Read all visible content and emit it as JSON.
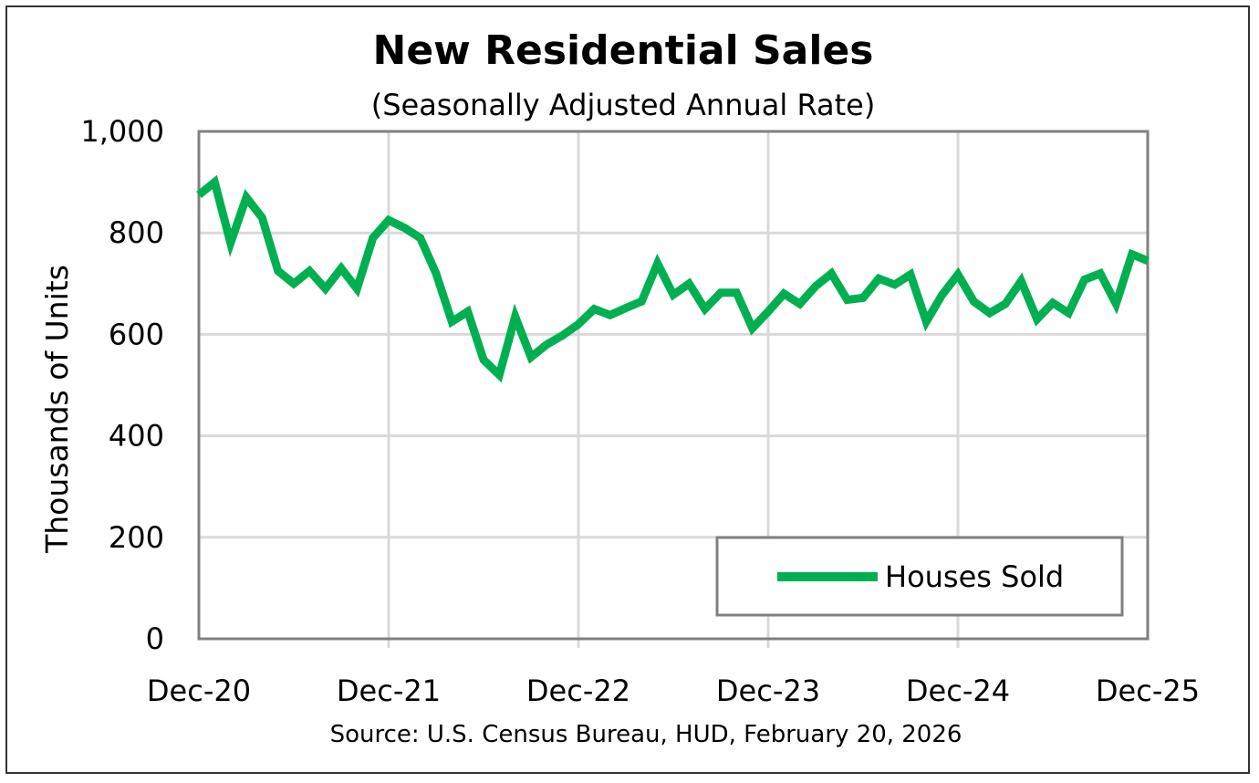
{
  "chart_data": {
    "type": "line",
    "title": "New Residential Sales",
    "subtitle": "(Seasonally Adjusted Annual Rate)",
    "ylabel": "Thousands of Units",
    "xlabel": "",
    "source": "Source:  U.S. Census Bureau, HUD, February 20, 2026",
    "ylim": [
      0,
      1000
    ],
    "y_ticks": [
      "0",
      "200",
      "400",
      "600",
      "800",
      "1,000"
    ],
    "y_tick_values": [
      0,
      200,
      400,
      600,
      800,
      1000
    ],
    "x_ticks": [
      "Dec-20",
      "Dec-21",
      "Dec-22",
      "Dec-23",
      "Dec-24",
      "Dec-25"
    ],
    "x_tick_index": [
      0,
      12,
      24,
      36,
      48,
      60
    ],
    "grid": true,
    "legend_position": "bottom-right",
    "series": [
      {
        "name": "Houses Sold",
        "color": "#00b050",
        "values": [
          875,
          900,
          780,
          870,
          830,
          725,
          700,
          725,
          690,
          730,
          690,
          790,
          825,
          810,
          790,
          720,
          625,
          645,
          550,
          520,
          635,
          555,
          580,
          598,
          620,
          650,
          638,
          652,
          665,
          740,
          678,
          700,
          650,
          682,
          682,
          612,
          645,
          680,
          660,
          695,
          720,
          668,
          672,
          710,
          698,
          718,
          625,
          678,
          718,
          665,
          642,
          660,
          705,
          630,
          662,
          642,
          708,
          720,
          660,
          758,
          745
        ]
      }
    ]
  }
}
